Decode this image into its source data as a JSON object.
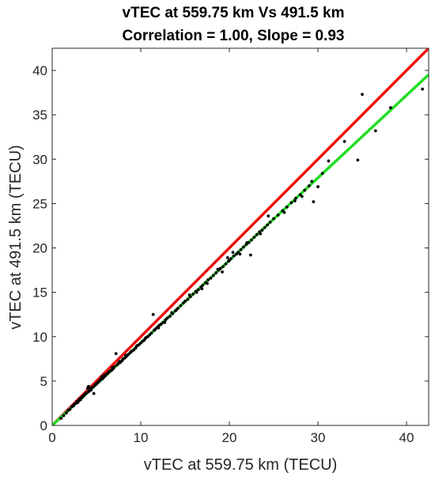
{
  "chart_data": {
    "type": "scatter",
    "title": "vTEC at 559.75 km Vs 491.5 km",
    "subtitle": "Correlation = 1.00, Slope = 0.93",
    "xlabel": "vTEC at 559.75 km (TECU)",
    "ylabel": "vTEC at 491.5 km (TECU)",
    "xlim": [
      0,
      42.5
    ],
    "ylim": [
      0,
      42.5
    ],
    "xticks": [
      0,
      10,
      20,
      30,
      40
    ],
    "yticks": [
      0,
      5,
      10,
      15,
      20,
      25,
      30,
      35,
      40
    ],
    "grid": false,
    "box": true,
    "lines": [
      {
        "color": "#ee1111",
        "slope": 1.0,
        "intercept": 0
      },
      {
        "color": "#22dd22",
        "slope": 0.93,
        "intercept": 0
      }
    ],
    "point_color": "#000000",
    "points": [
      [
        1.0,
        0.8
      ],
      [
        1.3,
        1.1
      ],
      [
        1.6,
        1.4
      ],
      [
        1.8,
        1.7
      ],
      [
        2.0,
        1.8
      ],
      [
        2.2,
        2.1
      ],
      [
        2.4,
        2.2
      ],
      [
        2.5,
        2.4
      ],
      [
        2.7,
        2.5
      ],
      [
        2.8,
        2.7
      ],
      [
        3.0,
        2.8
      ],
      [
        3.1,
        3.0
      ],
      [
        3.2,
        2.9
      ],
      [
        3.3,
        3.1
      ],
      [
        3.5,
        3.3
      ],
      [
        3.6,
        3.4
      ],
      [
        3.7,
        3.5
      ],
      [
        3.8,
        3.6
      ],
      [
        3.9,
        3.7
      ],
      [
        4.0,
        4.2
      ],
      [
        4.1,
        3.8
      ],
      [
        4.2,
        3.9
      ],
      [
        4.3,
        4.1
      ],
      [
        4.4,
        4.0
      ],
      [
        4.5,
        4.3
      ],
      [
        4.6,
        4.3
      ],
      [
        4.7,
        3.6
      ],
      [
        4.8,
        4.5
      ],
      [
        4.9,
        4.6
      ],
      [
        5.0,
        4.7
      ],
      [
        5.1,
        4.8
      ],
      [
        5.2,
        4.9
      ],
      [
        5.3,
        5.0
      ],
      [
        5.4,
        5.1
      ],
      [
        5.5,
        5.2
      ],
      [
        5.6,
        5.2
      ],
      [
        5.7,
        5.3
      ],
      [
        5.8,
        5.4
      ],
      [
        6.0,
        5.6
      ],
      [
        6.2,
        5.8
      ],
      [
        6.4,
        6.0
      ],
      [
        6.5,
        6.1
      ],
      [
        6.7,
        6.2
      ],
      [
        6.9,
        6.4
      ],
      [
        7.0,
        6.6
      ],
      [
        7.2,
        8.1
      ],
      [
        7.3,
        6.8
      ],
      [
        7.5,
        7.0
      ],
      [
        7.7,
        7.1
      ],
      [
        7.9,
        7.3
      ],
      [
        8.0,
        7.5
      ],
      [
        8.2,
        7.6
      ],
      [
        8.4,
        7.8
      ],
      [
        8.6,
        8.0
      ],
      [
        8.8,
        8.2
      ],
      [
        9.0,
        8.4
      ],
      [
        9.2,
        8.5
      ],
      [
        9.4,
        8.7
      ],
      [
        9.6,
        9.0
      ],
      [
        9.8,
        9.1
      ],
      [
        10.0,
        9.3
      ],
      [
        10.2,
        9.5
      ],
      [
        10.4,
        9.6
      ],
      [
        10.6,
        9.9
      ],
      [
        10.8,
        10.0
      ],
      [
        11.0,
        10.2
      ],
      [
        11.2,
        10.4
      ],
      [
        11.4,
        12.5
      ],
      [
        11.5,
        10.7
      ],
      [
        11.7,
        10.9
      ],
      [
        11.9,
        11.1
      ],
      [
        12.1,
        11.3
      ],
      [
        12.3,
        11.4
      ],
      [
        12.5,
        11.6
      ],
      [
        12.8,
        11.9
      ],
      [
        13.0,
        12.1
      ],
      [
        13.3,
        12.3
      ],
      [
        13.6,
        12.6
      ],
      [
        13.9,
        12.9
      ],
      [
        14.2,
        13.2
      ],
      [
        14.5,
        13.5
      ],
      [
        14.8,
        13.8
      ],
      [
        15.0,
        14.0
      ],
      [
        15.3,
        14.2
      ],
      [
        15.6,
        14.5
      ],
      [
        15.9,
        14.8
      ],
      [
        16.2,
        15.1
      ],
      [
        16.5,
        15.3
      ],
      [
        16.8,
        15.6
      ],
      [
        17.0,
        15.8
      ],
      [
        17.3,
        16.1
      ],
      [
        17.6,
        16.4
      ],
      [
        17.9,
        16.6
      ],
      [
        18.2,
        16.9
      ],
      [
        18.5,
        17.2
      ],
      [
        18.8,
        17.5
      ],
      [
        19.0,
        17.7
      ],
      [
        19.3,
        17.9
      ],
      [
        19.6,
        18.2
      ],
      [
        19.9,
        18.5
      ],
      [
        20.2,
        18.8
      ],
      [
        20.5,
        19.1
      ],
      [
        20.8,
        19.3
      ],
      [
        21.0,
        19.5
      ],
      [
        21.3,
        19.8
      ],
      [
        21.6,
        20.1
      ],
      [
        21.9,
        20.4
      ],
      [
        22.2,
        20.6
      ],
      [
        22.5,
        20.9
      ],
      [
        22.8,
        21.2
      ],
      [
        23.1,
        21.5
      ],
      [
        23.4,
        21.8
      ],
      [
        23.7,
        22.0
      ],
      [
        24.0,
        22.3
      ],
      [
        24.3,
        22.6
      ],
      [
        24.6,
        22.9
      ],
      [
        25.0,
        23.3
      ],
      [
        25.5,
        23.7
      ],
      [
        26.0,
        24.2
      ],
      [
        26.5,
        24.6
      ],
      [
        27.0,
        25.1
      ],
      [
        27.5,
        25.6
      ],
      [
        28.0,
        26.0
      ],
      [
        28.5,
        26.5
      ],
      [
        29.0,
        27.0
      ],
      [
        29.5,
        25.2
      ],
      [
        30.0,
        26.9
      ],
      [
        30.5,
        28.4
      ],
      [
        31.2,
        29.8
      ],
      [
        33.0,
        32.0
      ],
      [
        34.5,
        29.9
      ],
      [
        35.0,
        37.3
      ],
      [
        36.5,
        33.2
      ],
      [
        38.2,
        35.8
      ],
      [
        41.8,
        37.9
      ],
      [
        2.9,
        2.6
      ],
      [
        3.4,
        3.2
      ],
      [
        4.1,
        4.4
      ],
      [
        5.6,
        5.5
      ],
      [
        6.3,
        5.9
      ],
      [
        8.3,
        7.9
      ],
      [
        9.5,
        8.9
      ],
      [
        10.5,
        9.8
      ],
      [
        11.6,
        10.8
      ],
      [
        12.7,
        11.6
      ],
      [
        14.0,
        13.0
      ],
      [
        15.5,
        14.7
      ],
      [
        16.3,
        15.0
      ],
      [
        17.5,
        16.0
      ],
      [
        18.7,
        17.6
      ],
      [
        19.8,
        18.9
      ],
      [
        20.4,
        19.5
      ],
      [
        21.2,
        19.3
      ],
      [
        22.4,
        19.2
      ],
      [
        23.5,
        21.6
      ],
      [
        24.4,
        23.6
      ],
      [
        26.2,
        24.0
      ],
      [
        27.4,
        25.3
      ],
      [
        29.3,
        27.5
      ],
      [
        28.2,
        25.8
      ],
      [
        20.0,
        18.6
      ],
      [
        22.0,
        20.6
      ],
      [
        19.2,
        17.3
      ],
      [
        16.9,
        15.4
      ],
      [
        13.5,
        12.7
      ],
      [
        12.0,
        11.0
      ],
      [
        8.9,
        8.3
      ],
      [
        7.6,
        7.2
      ],
      [
        6.8,
        6.5
      ],
      [
        5.9,
        5.7
      ]
    ]
  }
}
